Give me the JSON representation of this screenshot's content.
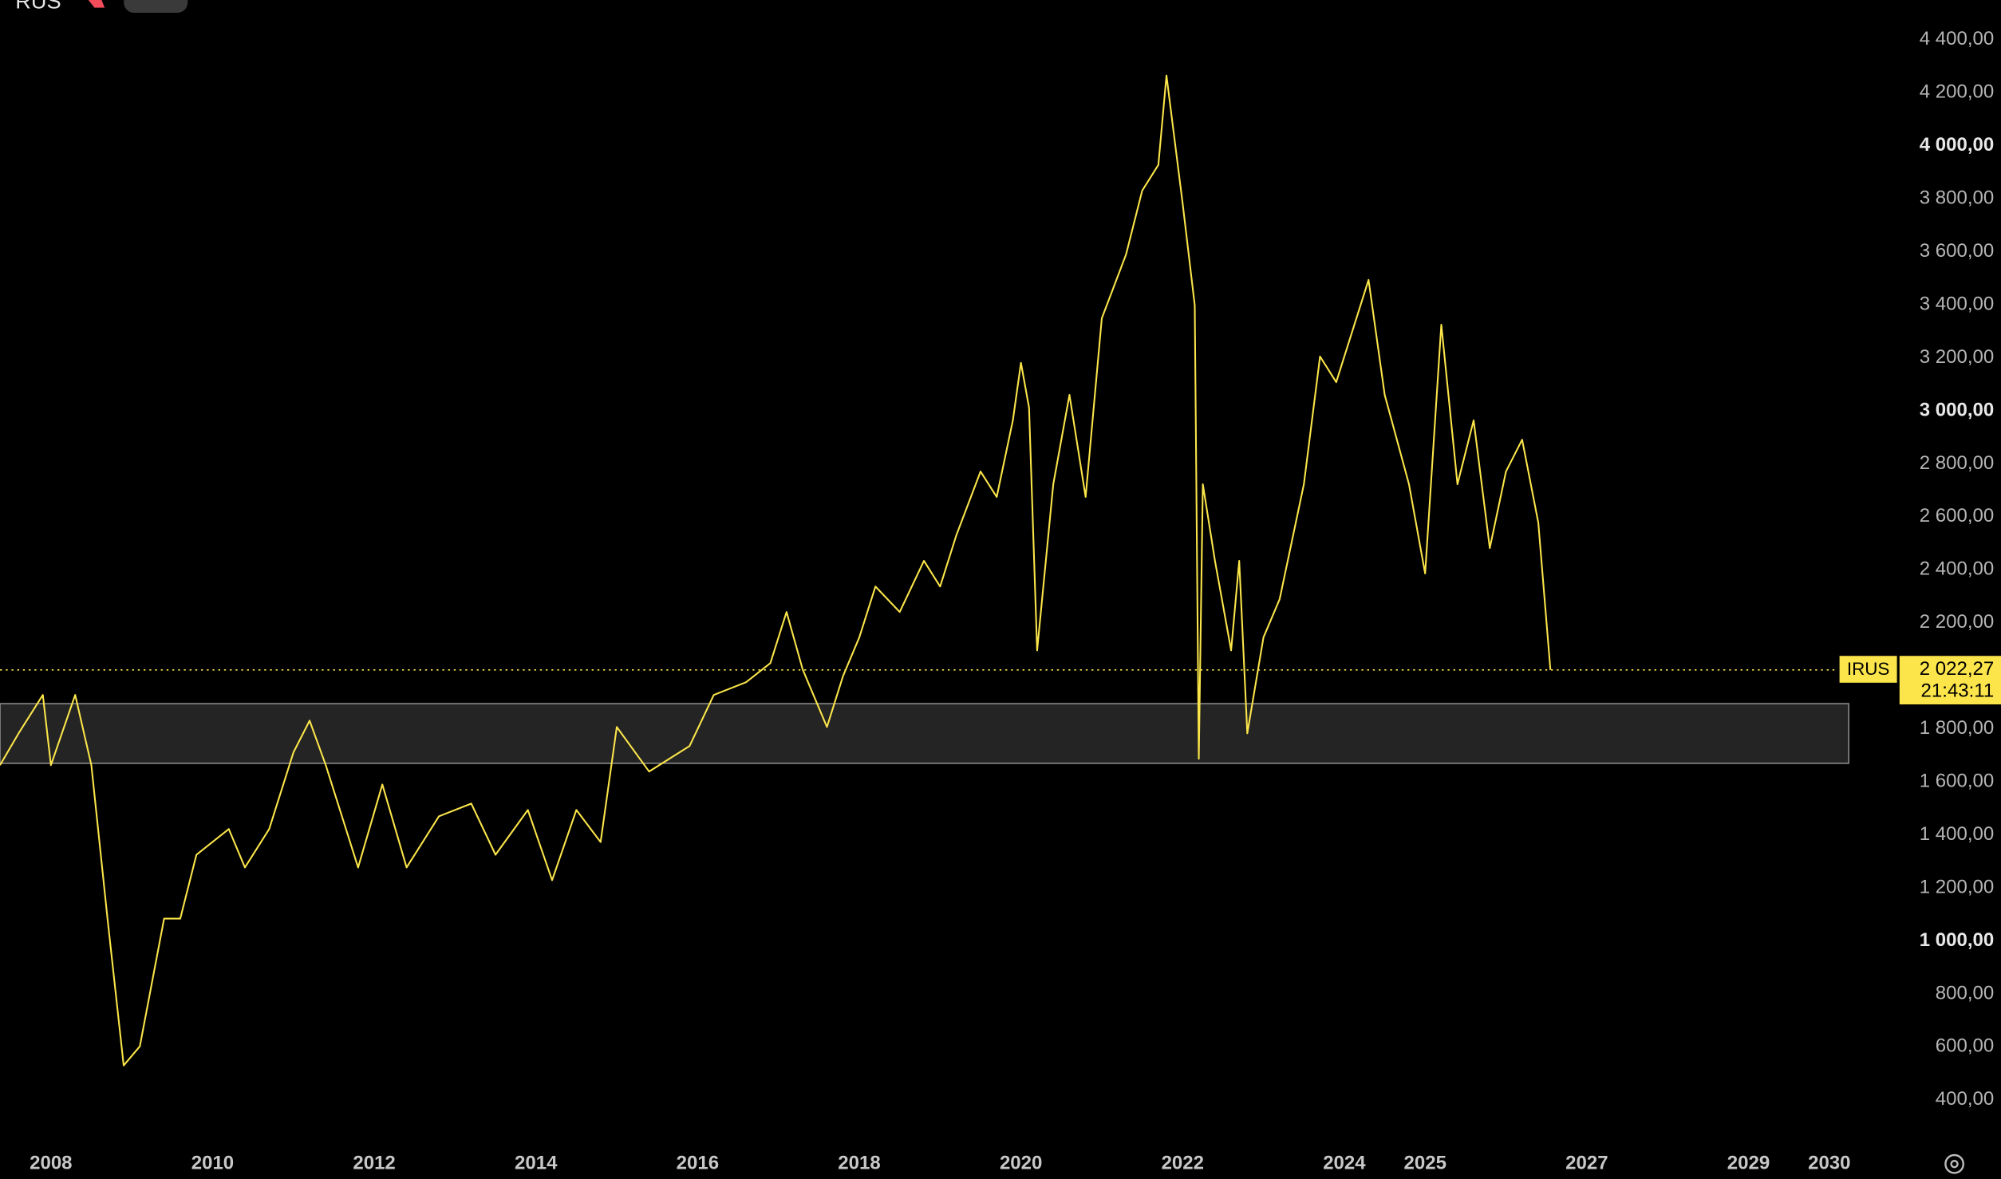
{
  "chart_data": {
    "type": "line",
    "title": "RUS",
    "x": [
      2007.37,
      2007.6,
      2007.9,
      2008.0,
      2008.3,
      2008.5,
      2008.7,
      2008.9,
      2009.1,
      2009.4,
      2009.6,
      2009.8,
      2010.2,
      2010.4,
      2010.7,
      2011.0,
      2011.2,
      2011.4,
      2011.6,
      2011.8,
      2012.1,
      2012.4,
      2012.8,
      2013.2,
      2013.5,
      2013.9,
      2014.2,
      2014.5,
      2014.8,
      2015.0,
      2015.4,
      2015.9,
      2016.2,
      2016.6,
      2016.9,
      2017.1,
      2017.3,
      2017.6,
      2017.8,
      2018.0,
      2018.2,
      2018.5,
      2018.8,
      2019.0,
      2019.2,
      2019.5,
      2019.7,
      2019.9,
      2020.0,
      2020.1,
      2020.2,
      2020.4,
      2020.6,
      2020.8,
      2021.0,
      2021.3,
      2021.5,
      2021.7,
      2021.8,
      2022.0,
      2022.15,
      2022.2,
      2022.25,
      2022.4,
      2022.6,
      2022.7,
      2022.8,
      2023.0,
      2023.2,
      2023.5,
      2023.7,
      2023.9,
      2024.1,
      2024.3,
      2024.5,
      2024.8,
      2025.0,
      2025.2,
      2025.4,
      2025.6,
      2025.8,
      2026.0,
      2026.2,
      2026.4,
      2026.55
    ],
    "series": [
      {
        "name": "IRUS",
        "color": "#fbe54a",
        "values": [
          1663,
          1783,
          1928,
          1663,
          1928,
          1663,
          1084,
          530,
          602,
          1084,
          1084,
          1325,
          1422,
          1277,
          1422,
          1711,
          1831,
          1663,
          1470,
          1277,
          1590,
          1277,
          1470,
          1518,
          1325,
          1494,
          1229,
          1494,
          1373,
          1807,
          1639,
          1735,
          1928,
          1976,
          2048,
          2241,
          2024,
          1807,
          2000,
          2145,
          2337,
          2241,
          2434,
          2337,
          2530,
          2771,
          2675,
          2964,
          3181,
          3012,
          2096,
          2723,
          3060,
          2675,
          3349,
          3590,
          3831,
          3928,
          4265,
          3783,
          3398,
          1687,
          2723,
          2434,
          2096,
          2434,
          1783,
          2145,
          2289,
          2723,
          3205,
          3108,
          3301,
          3494,
          3060,
          2723,
          2386,
          3325,
          2723,
          2964,
          2482,
          2771,
          2891,
          2578,
          2022.27
        ]
      }
    ],
    "xlim": [
      2007.37,
      2030.9
    ],
    "xticks": [
      2008,
      2010,
      2012,
      2014,
      2016,
      2018,
      2020,
      2022,
      2024,
      2025,
      2027,
      2029,
      2030
    ],
    "ylim": [
      240,
      4550
    ],
    "yticks": [
      {
        "value": 400,
        "label": "400,00"
      },
      {
        "value": 600,
        "label": "600,00"
      },
      {
        "value": 800,
        "label": "800,00"
      },
      {
        "value": 1000,
        "label": "1 000,00"
      },
      {
        "value": 1200,
        "label": "1 200,00"
      },
      {
        "value": 1400,
        "label": "1 400,00"
      },
      {
        "value": 1600,
        "label": "1 600,00"
      },
      {
        "value": 1800,
        "label": "1 800,00"
      },
      {
        "value": 2200,
        "label": "2 200,00"
      },
      {
        "value": 2400,
        "label": "2 400,00"
      },
      {
        "value": 2600,
        "label": "2 600,00"
      },
      {
        "value": 2800,
        "label": "2 800,00"
      },
      {
        "value": 3000,
        "label": "3 000,00"
      },
      {
        "value": 3200,
        "label": "3 200,00"
      },
      {
        "value": 3400,
        "label": "3 400,00"
      },
      {
        "value": 3600,
        "label": "3 600,00"
      },
      {
        "value": 3800,
        "label": "3 800,00"
      },
      {
        "value": 4000,
        "label": "4 000,00"
      },
      {
        "value": 4200,
        "label": "4 200,00"
      },
      {
        "value": 4400,
        "label": "4 400,00"
      }
    ],
    "zone": {
      "ylim": [
        1670,
        1895
      ],
      "xend": 2030.24
    },
    "price": {
      "value": 2022.27,
      "label": "2 022,27",
      "symbol": "IRUS",
      "time": "21:43:11"
    }
  }
}
